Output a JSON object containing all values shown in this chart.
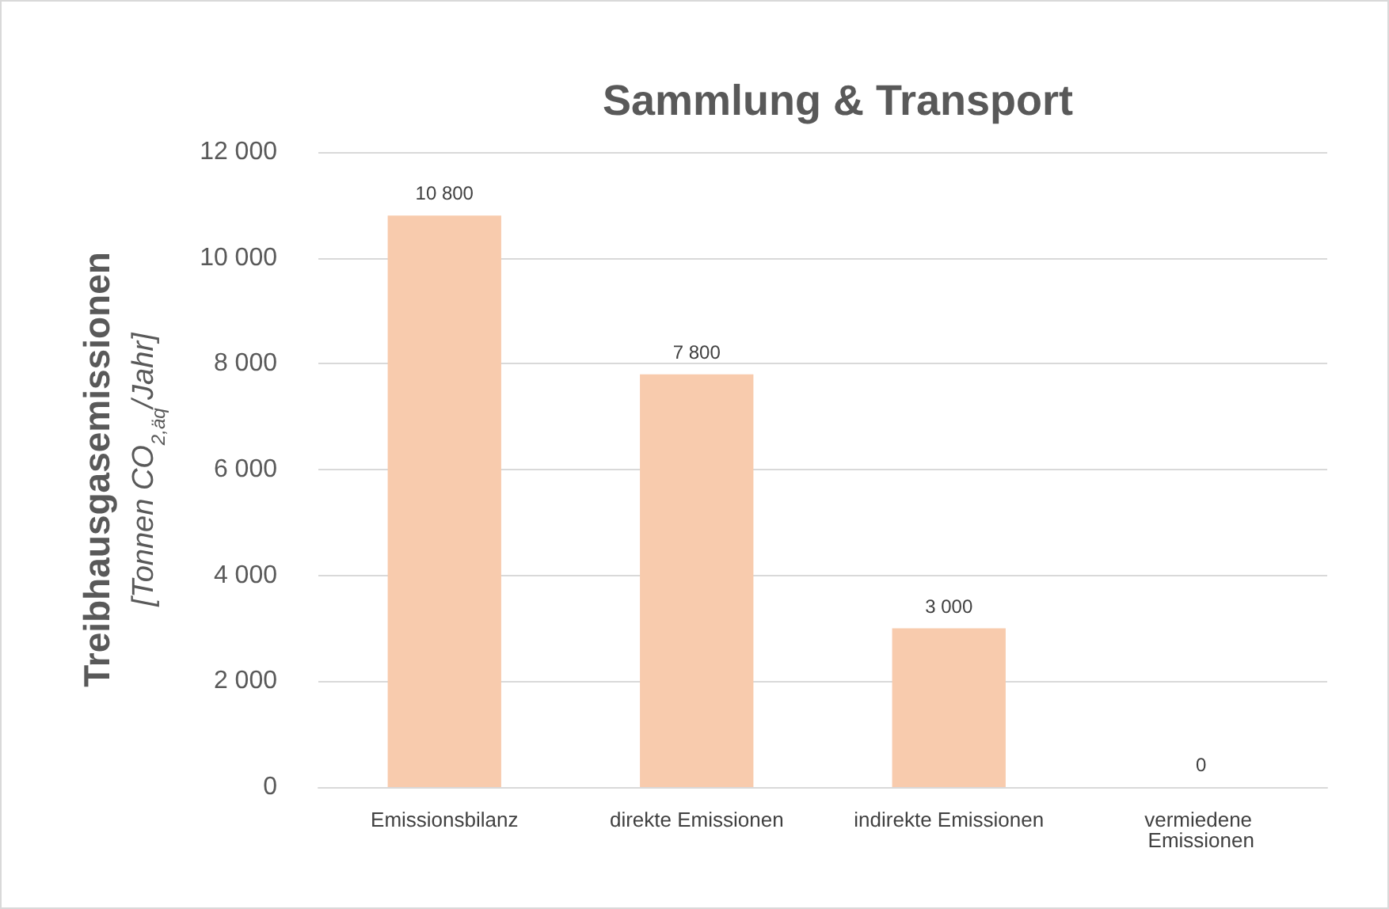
{
  "chart_data": {
    "type": "bar",
    "title": "Sammlung & Transport",
    "ylabel": "Treibhausgasemissionen\n[Tonnen CO$_{2,äq}$/Jahr]",
    "categories": [
      "Emissionsbilanz",
      "direkte Emissionen",
      "indirekte Emissionen",
      "vermiedene Emissionen"
    ],
    "values": [
      10800,
      7800,
      3000,
      0
    ],
    "color": "#f8cbad",
    "value_labels": [
      "10 800",
      "7 800",
      "3 000",
      "0"
    ],
    "ylim": [
      0,
      12000
    ],
    "yticks": [
      {
        "value": 0,
        "label": "0"
      },
      {
        "value": 2000,
        "label": "2 000"
      },
      {
        "value": 4000,
        "label": "4 000"
      },
      {
        "value": 6000,
        "label": "6 000"
      },
      {
        "value": 8000,
        "label": "8 000"
      },
      {
        "value": 10000,
        "label": "10 000"
      },
      {
        "value": 12000,
        "label": "12 000"
      }
    ],
    "grid": "y"
  }
}
